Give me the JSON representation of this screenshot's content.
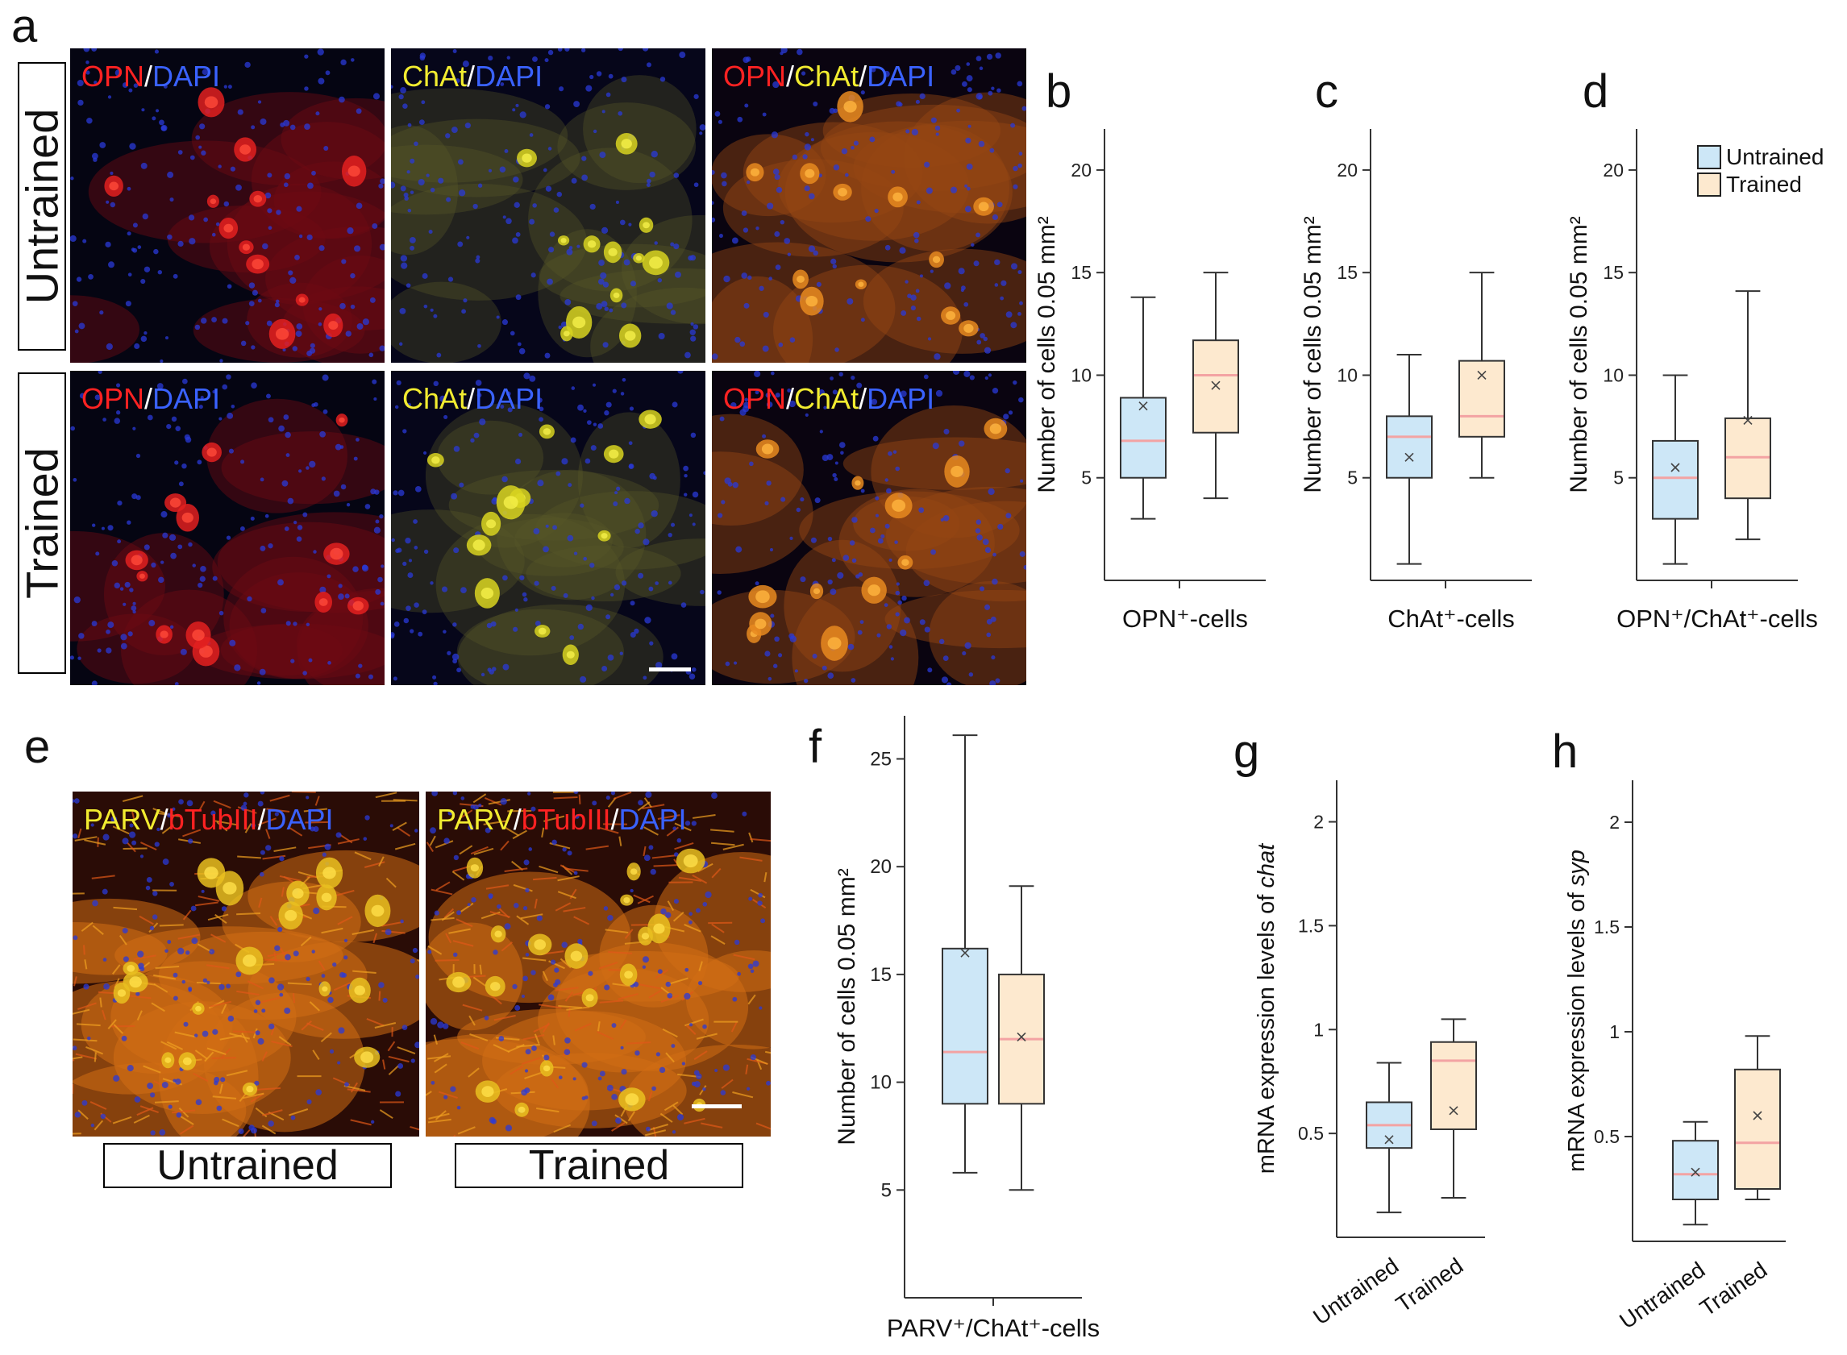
{
  "panel_labels": [
    "a",
    "b",
    "c",
    "d",
    "e",
    "f",
    "g",
    "h"
  ],
  "conditions": {
    "untrained": "Untrained",
    "trained": "Trained"
  },
  "stains": {
    "opn": "OPN",
    "dapi": "DAPI",
    "chat": "ChAt",
    "parv": "PARV",
    "btub": "bTubIII",
    "sep": "/"
  },
  "colors": {
    "red": "#ff2222",
    "blue": "#3a62ff",
    "yellow": "#f2ec30",
    "untrained_fill": "#cde7f7",
    "trained_fill": "#fde9cf",
    "median": "#f3a3a3"
  },
  "legend": {
    "untrained": "Untrained",
    "trained": "Trained"
  },
  "chart_data": [
    {
      "panel": "b",
      "type": "box",
      "ylabel": "Number of cells 0.05 mm²",
      "xlabel": "OPN⁺-cells",
      "ylim": [
        0,
        22
      ],
      "yticks": [
        5,
        10,
        15,
        20
      ],
      "series": [
        {
          "name": "Untrained",
          "min": 3,
          "q1": 5,
          "median": 6.8,
          "q3": 8.9,
          "max": 13.8,
          "mean": 8.5
        },
        {
          "name": "Trained",
          "min": 4,
          "q1": 7.2,
          "median": 10,
          "q3": 11.7,
          "max": 15,
          "mean": 9.5
        }
      ]
    },
    {
      "panel": "c",
      "type": "box",
      "ylabel": "Number of cells 0.05 mm²",
      "xlabel": "ChAt⁺-cells",
      "ylim": [
        0,
        22
      ],
      "yticks": [
        5,
        10,
        15,
        20
      ],
      "series": [
        {
          "name": "Untrained",
          "min": 0.8,
          "q1": 5,
          "median": 7,
          "q3": 8,
          "max": 11,
          "mean": 6
        },
        {
          "name": "Trained",
          "min": 5,
          "q1": 7,
          "median": 8,
          "q3": 10.7,
          "max": 15,
          "mean": 10
        }
      ]
    },
    {
      "panel": "d",
      "type": "box",
      "ylabel": "Number of cells 0.05 mm²",
      "xlabel": "OPN⁺/ChAt⁺-cells",
      "ylim": [
        0,
        22
      ],
      "yticks": [
        5,
        10,
        15,
        20
      ],
      "series": [
        {
          "name": "Untrained",
          "min": 0.8,
          "q1": 3,
          "median": 5,
          "q3": 6.8,
          "max": 10,
          "mean": 5.5
        },
        {
          "name": "Trained",
          "min": 2,
          "q1": 4,
          "median": 6,
          "q3": 7.9,
          "max": 14.1,
          "mean": 7.8
        }
      ]
    },
    {
      "panel": "f",
      "type": "box",
      "ylabel": "Number of cells 0.05 mm²",
      "xlabel": "PARV⁺/ChAt⁺-cells",
      "ylim": [
        0,
        27
      ],
      "yticks": [
        5,
        10,
        15,
        20,
        25
      ],
      "series": [
        {
          "name": "Untrained",
          "min": 5.8,
          "q1": 9,
          "median": 11.4,
          "q3": 16.2,
          "max": 26.1,
          "mean": 16
        },
        {
          "name": "Trained",
          "min": 5,
          "q1": 9,
          "median": 12,
          "q3": 15,
          "max": 19.1,
          "mean": 12.1
        }
      ]
    },
    {
      "panel": "g",
      "type": "box",
      "ylabel": "mRNA expression levels of chat",
      "ylabel_italic": "chat",
      "ylim": [
        0,
        2.2
      ],
      "yticks": [
        0.5,
        1,
        1.5,
        2
      ],
      "ytick_labels": [
        "0.5",
        "1",
        "1.5",
        "2"
      ],
      "categories": [
        "Untrained",
        "Trained"
      ],
      "series": [
        {
          "name": "Untrained",
          "min": 0.12,
          "q1": 0.43,
          "median": 0.54,
          "q3": 0.65,
          "max": 0.84,
          "mean": 0.47
        },
        {
          "name": "Trained",
          "min": 0.19,
          "q1": 0.52,
          "median": 0.85,
          "q3": 0.94,
          "max": 1.05,
          "mean": 0.61
        }
      ]
    },
    {
      "panel": "h",
      "type": "box",
      "ylabel": "mRNA expression levels of syp",
      "ylabel_italic": "syp",
      "ylim": [
        0,
        2.2
      ],
      "yticks": [
        0.5,
        1,
        1.5,
        2
      ],
      "ytick_labels": [
        "0.5",
        "1",
        "1.5",
        "2"
      ],
      "categories": [
        "Untrained",
        "Trained"
      ],
      "series": [
        {
          "name": "Untrained",
          "min": 0.08,
          "q1": 0.2,
          "median": 0.32,
          "q3": 0.48,
          "max": 0.57,
          "mean": 0.33
        },
        {
          "name": "Trained",
          "min": 0.2,
          "q1": 0.25,
          "median": 0.47,
          "q3": 0.82,
          "max": 0.98,
          "mean": 0.6
        }
      ]
    }
  ]
}
